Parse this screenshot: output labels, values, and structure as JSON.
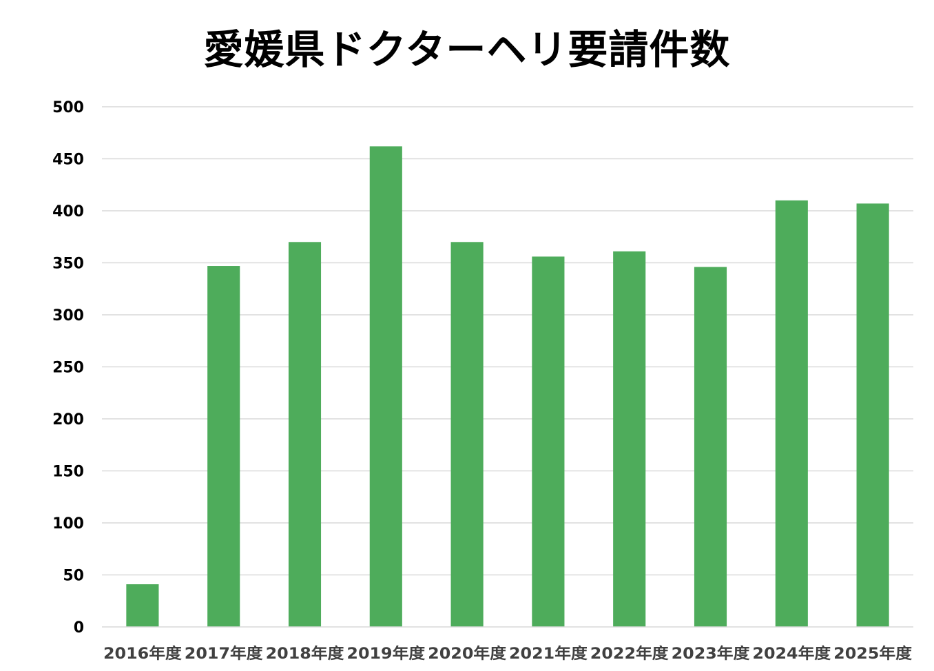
{
  "chart_data": {
    "type": "bar",
    "title": "愛媛県ドクターヘリ要請件数",
    "xlabel": "",
    "ylabel": "",
    "categories": [
      "2016年度",
      "2017年度",
      "2018年度",
      "2019年度",
      "2020年度",
      "2021年度",
      "2022年度",
      "2023年度",
      "2024年度",
      "2025年度"
    ],
    "values": [
      41,
      347,
      370,
      462,
      370,
      356,
      361,
      346,
      410,
      407
    ],
    "ylim": [
      0,
      500
    ],
    "yticks": [
      0,
      50,
      100,
      150,
      200,
      250,
      300,
      350,
      400,
      450,
      500
    ],
    "grid": true,
    "legend": "none",
    "bar_color": "#4EAC5B",
    "grid_color": "#D9D9D9"
  }
}
